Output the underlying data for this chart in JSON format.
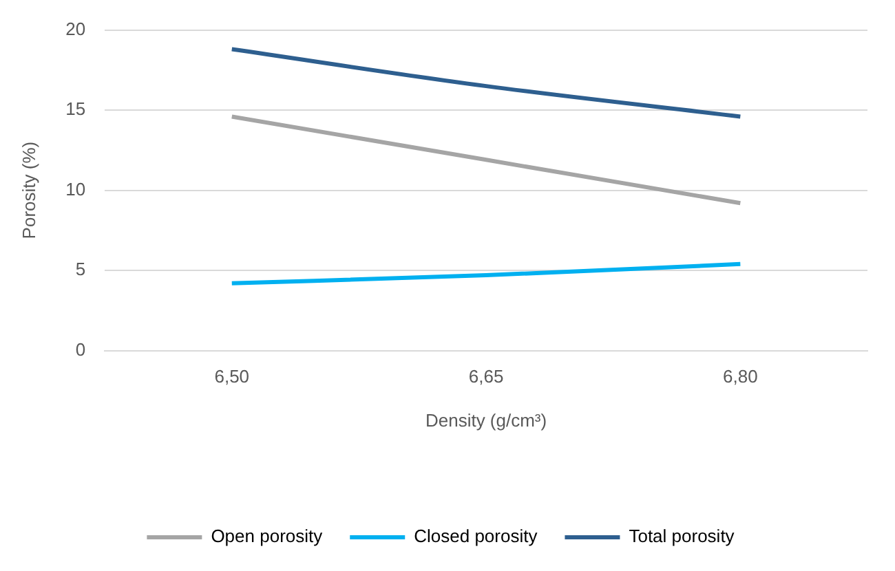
{
  "chart_data": {
    "type": "line",
    "xlabel": "Density (g/cm³)",
    "ylabel": "Porosity (%)",
    "categories": [
      "6,50",
      "6,65",
      "6,80"
    ],
    "series": [
      {
        "name": "Open porosity",
        "color": "#a5a5a5",
        "values": [
          14.6,
          11.9,
          9.2
        ]
      },
      {
        "name": "Closed porosity",
        "color": "#00b0f0",
        "values": [
          4.2,
          4.7,
          5.4
        ]
      },
      {
        "name": "Total porosity",
        "color": "#2e5f8f",
        "values": [
          18.8,
          16.5,
          14.6
        ]
      }
    ],
    "ylim": [
      0,
      20
    ],
    "yticks": [
      0,
      5,
      10,
      15,
      20
    ],
    "grid": "y",
    "legend": "bottom",
    "marker": "none",
    "line_style": "solid"
  }
}
